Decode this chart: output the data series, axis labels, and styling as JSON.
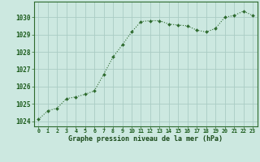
{
  "x": [
    0,
    1,
    2,
    3,
    4,
    5,
    6,
    7,
    8,
    9,
    10,
    11,
    12,
    13,
    14,
    15,
    16,
    17,
    18,
    19,
    20,
    21,
    22,
    23
  ],
  "y": [
    1024.1,
    1024.6,
    1024.75,
    1025.3,
    1025.4,
    1025.55,
    1025.75,
    1026.7,
    1027.7,
    1028.4,
    1029.15,
    1029.75,
    1029.8,
    1029.8,
    1029.6,
    1029.55,
    1029.5,
    1029.25,
    1029.15,
    1029.35,
    1030.0,
    1030.1,
    1030.35,
    1030.1
  ],
  "line_color": "#2d6a2d",
  "marker_color": "#2d6a2d",
  "bg_color": "#cce8e0",
  "grid_color": "#aaccc4",
  "xlabel": "Graphe pression niveau de la mer (hPa)",
  "xlabel_color": "#1a4a1a",
  "ylabel_ticks": [
    1024,
    1025,
    1026,
    1027,
    1028,
    1029,
    1030
  ],
  "xlim": [
    -0.5,
    23.5
  ],
  "ylim": [
    1023.7,
    1030.9
  ],
  "tick_label_color": "#1a5a1a",
  "spine_color": "#2d6a2d"
}
